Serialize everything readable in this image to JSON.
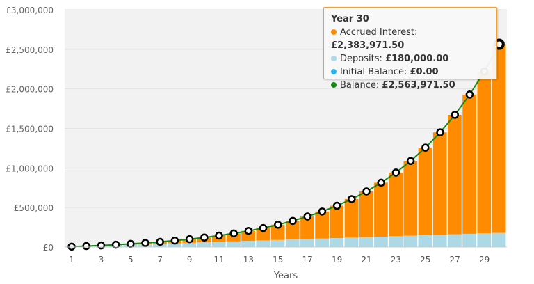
{
  "chart_data": {
    "type": "bar",
    "stacked": true,
    "xlabel": "Years",
    "ylabel": "",
    "ylim": [
      0,
      3000000
    ],
    "yticks": [
      "£0",
      "£500,000",
      "£1,000,000",
      "£1,500,000",
      "£2,000,000",
      "£2,500,000",
      "£3,000,000"
    ],
    "grid": true,
    "categories": [
      1,
      2,
      3,
      4,
      5,
      6,
      7,
      8,
      9,
      10,
      11,
      12,
      13,
      14,
      15,
      16,
      17,
      18,
      19,
      20,
      21,
      22,
      23,
      24,
      25,
      26,
      27,
      28,
      29,
      30
    ],
    "xtick_labels": [
      "1",
      "3",
      "5",
      "7",
      "9",
      "11",
      "13",
      "15",
      "17",
      "19",
      "21",
      "23",
      "25",
      "27",
      "29"
    ],
    "series": [
      {
        "name": "Deposits",
        "kind": "bar",
        "color": "#add8e6",
        "values": [
          6000,
          12000,
          18000,
          24000,
          30000,
          36000,
          42000,
          48000,
          54000,
          60000,
          66000,
          72000,
          78000,
          84000,
          90000,
          96000,
          102000,
          108000,
          114000,
          120000,
          126000,
          132000,
          138000,
          144000,
          150000,
          156000,
          162000,
          168000,
          174000,
          180000
        ]
      },
      {
        "name": "Accrued Interest",
        "kind": "bar",
        "color": "#ff8c00",
        "values": [
          0,
          894,
          2815,
          5915,
          10370,
          16389,
          24197,
          34059,
          46285,
          61228,
          79293,
          100941,
          126709,
          157212,
          193152,
          235341,
          284710,
          342330,
          409430,
          487421,
          577929,
          682816,
          804222,
          944613,
          1106819,
          1294083,
          1510143,
          1759293,
          2046459,
          2383971.5
        ]
      },
      {
        "name": "Initial Balance",
        "kind": "bar",
        "color": "#29b6f6",
        "values": [
          0,
          0,
          0,
          0,
          0,
          0,
          0,
          0,
          0,
          0,
          0,
          0,
          0,
          0,
          0,
          0,
          0,
          0,
          0,
          0,
          0,
          0,
          0,
          0,
          0,
          0,
          0,
          0,
          0,
          0
        ]
      },
      {
        "name": "Balance",
        "kind": "line",
        "color": "#138a13",
        "values": [
          6000,
          12894,
          20815,
          29915,
          40370,
          52389,
          66197,
          82059,
          100285,
          121228,
          145293,
          172941,
          204709,
          241212,
          283152,
          331341,
          386710,
          450330,
          523430,
          607421,
          703929,
          814816,
          942222,
          1088613,
          1256819,
          1450083,
          1672143,
          1927293,
          2220459,
          2563971.5
        ]
      }
    ],
    "tooltip": {
      "title": "Year 30",
      "rows": [
        {
          "label": "Accrued Interest:",
          "value": "£2,383,971.50",
          "color": "#ff8c00"
        },
        {
          "label": "Deposits:",
          "value": "£180,000.00",
          "color": "#add8e6"
        },
        {
          "label": "Initial Balance:",
          "value": "£0.00",
          "color": "#29b6f6"
        },
        {
          "label": "Balance:",
          "value": "£2,563,971.50",
          "color": "#138a13"
        }
      ]
    }
  }
}
